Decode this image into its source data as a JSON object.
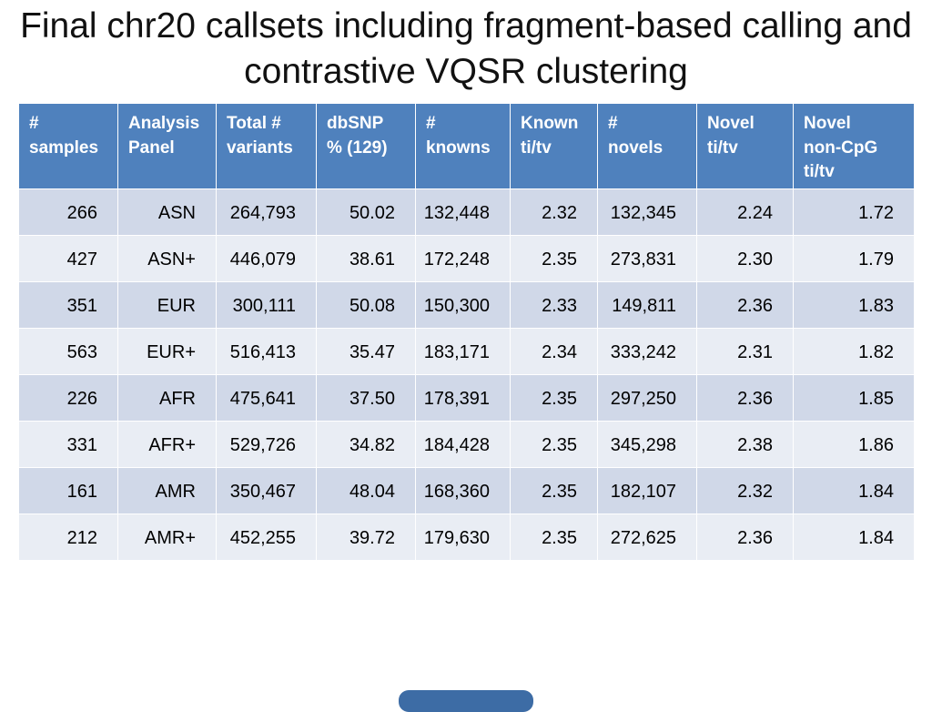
{
  "slide": {
    "title": "Final chr20 callsets including fragment-based calling and contrastive VQSR clustering"
  },
  "table": {
    "columns": [
      "#\nsamples",
      "Analysis\nPanel",
      "Total #\nvariants",
      "dbSNP\n% (129)",
      "#\nknowns",
      "Known\nti/tv",
      "#\nnovels",
      "Novel\nti/tv",
      "Novel\nnon-CpG\nti/tv"
    ],
    "rows": [
      [
        "266",
        "ASN",
        "264,793",
        "50.02",
        "132,448",
        "2.32",
        "132,345",
        "2.24",
        "1.72"
      ],
      [
        "427",
        "ASN+",
        "446,079",
        "38.61",
        "172,248",
        "2.35",
        "273,831",
        "2.30",
        "1.79"
      ],
      [
        "351",
        "EUR",
        "300,111",
        "50.08",
        "150,300",
        "2.33",
        "149,811",
        "2.36",
        "1.83"
      ],
      [
        "563",
        "EUR+",
        "516,413",
        "35.47",
        "183,171",
        "2.34",
        "333,242",
        "2.31",
        "1.82"
      ],
      [
        "226",
        "AFR",
        "475,641",
        "37.50",
        "178,391",
        "2.35",
        "297,250",
        "2.36",
        "1.85"
      ],
      [
        "331",
        "AFR+",
        "529,726",
        "34.82",
        "184,428",
        "2.35",
        "345,298",
        "2.38",
        "1.86"
      ],
      [
        "161",
        "AMR",
        "350,467",
        "48.04",
        "168,360",
        "2.35",
        "182,107",
        "2.32",
        "1.84"
      ],
      [
        "212",
        "AMR+",
        "452,255",
        "39.72",
        "179,630",
        "2.35",
        "272,625",
        "2.36",
        "1.84"
      ]
    ]
  },
  "colors": {
    "header_bg": "#4F81BD",
    "header_text": "#FFFFFF",
    "row_odd": "#D0D8E8",
    "row_even": "#E9EDF4",
    "title_text": "#111111",
    "footer_badge": "#3D6CA5"
  }
}
